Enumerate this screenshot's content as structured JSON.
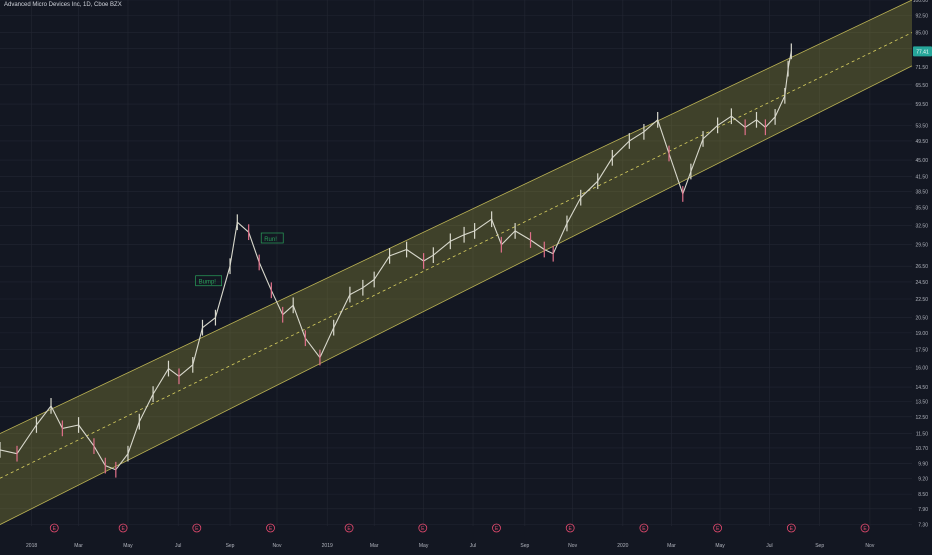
{
  "header": {
    "title": "Advanced Micro Devices Inc, 1D, Cboe BZX"
  },
  "colors": {
    "background": "#131722",
    "grid": "#232733",
    "channel_fill": "#a09a3a",
    "channel_line": "#e0d460",
    "mid_line": "#d9d060",
    "candle_up": "#d8d8cc",
    "candle_down": "#e0708a",
    "price_label_bg": "#26a69a",
    "annotation": "#2aa05a",
    "axis_text": "#b2b5be",
    "earnings": "#e64a6f"
  },
  "chart_data": {
    "type": "line",
    "title": "Advanced Micro Devices Inc, 1D, Cboe BZX",
    "symbol": "AMD",
    "current_price": "77.41",
    "y_scale": "log",
    "ylim": [
      7.25,
      100
    ],
    "xlim": [
      "2017-11-24",
      "2020-12-24"
    ],
    "y_ticks": [
      "100.00",
      "92.50",
      "85.00",
      "78.50",
      "71.50",
      "65.50",
      "59.50",
      "53.50",
      "49.50",
      "45.00",
      "41.50",
      "38.50",
      "35.50",
      "32.50",
      "29.50",
      "26.50",
      "24.50",
      "22.50",
      "20.50",
      "19.00",
      "17.50",
      "16.00",
      "14.50",
      "13.50",
      "12.50",
      "11.50",
      "10.70",
      "9.90",
      "9.20",
      "8.50",
      "7.90",
      "7.30"
    ],
    "x_ticks": [
      {
        "label": "2018",
        "date": "2018-01-02"
      },
      {
        "label": "Mar",
        "date": "2018-03-01"
      },
      {
        "label": "May",
        "date": "2018-05-01"
      },
      {
        "label": "Jul",
        "date": "2018-07-02"
      },
      {
        "label": "Sep",
        "date": "2018-09-04"
      },
      {
        "label": "Nov",
        "date": "2018-11-01"
      },
      {
        "label": "2019",
        "date": "2019-01-02"
      },
      {
        "label": "Mar",
        "date": "2019-03-01"
      },
      {
        "label": "May",
        "date": "2019-05-01"
      },
      {
        "label": "Jul",
        "date": "2019-07-01"
      },
      {
        "label": "Sep",
        "date": "2019-09-03"
      },
      {
        "label": "Nov",
        "date": "2019-11-01"
      },
      {
        "label": "2020",
        "date": "2020-01-02"
      },
      {
        "label": "Mar",
        "date": "2020-03-02"
      },
      {
        "label": "May",
        "date": "2020-05-01"
      },
      {
        "label": "Jul",
        "date": "2020-07-01"
      },
      {
        "label": "Sep",
        "date": "2020-09-01"
      },
      {
        "label": "Nov",
        "date": "2020-11-02"
      }
    ],
    "series": [
      {
        "x": [
          "2017-11-24",
          "2017-12-15",
          "2018-01-08",
          "2018-01-26",
          "2018-02-09",
          "2018-03-01",
          "2018-03-20",
          "2018-04-03",
          "2018-04-16",
          "2018-05-01",
          "2018-05-15",
          "2018-06-01",
          "2018-06-20",
          "2018-07-03",
          "2018-07-20",
          "2018-08-01",
          "2018-08-17",
          "2018-09-04",
          "2018-09-13",
          "2018-09-27",
          "2018-10-10",
          "2018-10-25",
          "2018-11-08",
          "2018-11-21",
          "2018-12-06",
          "2018-12-24",
          "2019-01-10",
          "2019-01-30",
          "2019-02-15",
          "2019-03-01",
          "2019-03-20",
          "2019-04-10",
          "2019-05-01",
          "2019-05-13",
          "2019-06-03",
          "2019-06-20",
          "2019-07-03",
          "2019-07-24",
          "2019-08-05",
          "2019-08-22",
          "2019-09-10",
          "2019-09-27",
          "2019-10-08",
          "2019-10-25",
          "2019-11-11",
          "2019-12-02",
          "2019-12-20",
          "2020-01-10",
          "2020-01-28",
          "2020-02-14",
          "2020-02-28",
          "2020-03-16",
          "2020-03-26",
          "2020-04-10",
          "2020-04-28",
          "2020-05-15",
          "2020-06-01",
          "2020-06-15",
          "2020-06-26",
          "2020-07-08",
          "2020-07-20",
          "2020-07-24",
          "2020-07-28"
        ],
        "values": [
          10.6,
          10.4,
          12.0,
          13.2,
          11.8,
          12.0,
          10.8,
          9.8,
          9.6,
          10.4,
          12.2,
          14.0,
          15.9,
          15.3,
          16.2,
          19.5,
          20.5,
          26.5,
          33.0,
          31.4,
          27.0,
          23.5,
          20.8,
          21.8,
          18.5,
          16.8,
          19.5,
          23.0,
          23.8,
          24.8,
          27.9,
          28.8,
          27.2,
          28.0,
          30.0,
          31.0,
          31.6,
          33.5,
          29.5,
          31.6,
          30.2,
          28.8,
          28.2,
          32.8,
          37.3,
          40.5,
          45.5,
          49.5,
          51.8,
          55.0,
          46.5,
          38.0,
          42.5,
          50.0,
          53.5,
          56.0,
          53.0,
          55.0,
          53.0,
          55.8,
          62.0,
          71.0,
          77.41
        ]
      }
    ],
    "channel": {
      "upper": {
        "x": [
          "2017-11-24",
          "2020-12-24"
        ],
        "y": [
          11.5,
          100
        ]
      },
      "mid": {
        "x": [
          "2017-11-24",
          "2020-12-24"
        ],
        "y": [
          9.2,
          85
        ]
      },
      "lower": {
        "x": [
          "2017-11-24",
          "2020-12-24"
        ],
        "y": [
          7.3,
          72
        ]
      }
    },
    "annotations": [
      {
        "text": "Bump!",
        "x": "2018-07-26",
        "y": 24.4
      },
      {
        "text": "Run!",
        "x": "2018-10-15",
        "y": 30.2
      }
    ],
    "earnings_markers": [
      "2018-01-30",
      "2018-04-25",
      "2018-07-25",
      "2018-10-24",
      "2019-01-29",
      "2019-04-30",
      "2019-07-30",
      "2019-10-29",
      "2020-01-28",
      "2020-04-28",
      "2020-07-28",
      "2020-10-27"
    ],
    "earnings_marker_label": "E",
    "grid": true
  }
}
